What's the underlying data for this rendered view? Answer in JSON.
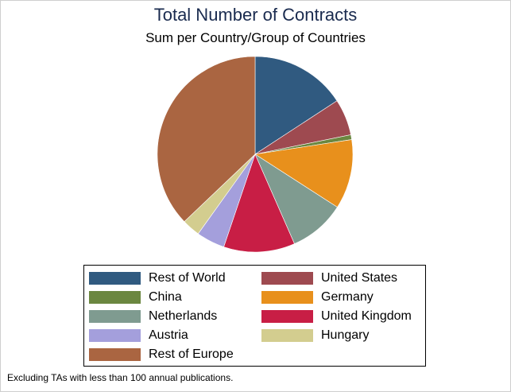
{
  "chart_data": {
    "type": "pie",
    "title": "Total Number of Contracts",
    "subtitle": "Sum per Country/Group of Countries",
    "start_angle_deg": 0,
    "direction": "clockwise",
    "slices": [
      {
        "label": "Rest of World",
        "value": 15.8,
        "color": "#305a80"
      },
      {
        "label": "United States",
        "value": 6.0,
        "color": "#9e4a50"
      },
      {
        "label": "China",
        "value": 0.8,
        "color": "#6b8740"
      },
      {
        "label": "Germany",
        "value": 11.5,
        "color": "#e8901c"
      },
      {
        "label": "Netherlands",
        "value": 9.3,
        "color": "#7f9b90"
      },
      {
        "label": "United Kingdom",
        "value": 11.8,
        "color": "#c81e45"
      },
      {
        "label": "Austria",
        "value": 4.7,
        "color": "#a49fdc"
      },
      {
        "label": "Hungary",
        "value": 3.0,
        "color": "#d3cd8f"
      },
      {
        "label": "Rest of Europe",
        "value": 37.1,
        "color": "#aa6541"
      }
    ],
    "legend": {
      "placement": "bottom",
      "columns": 2,
      "order": [
        "Rest of World",
        "United States",
        "China",
        "Germany",
        "Netherlands",
        "United Kingdom",
        "Austria",
        "Hungary",
        "Rest of Europe"
      ]
    },
    "note": "Excluding TAs with less than 100 annual publications."
  }
}
